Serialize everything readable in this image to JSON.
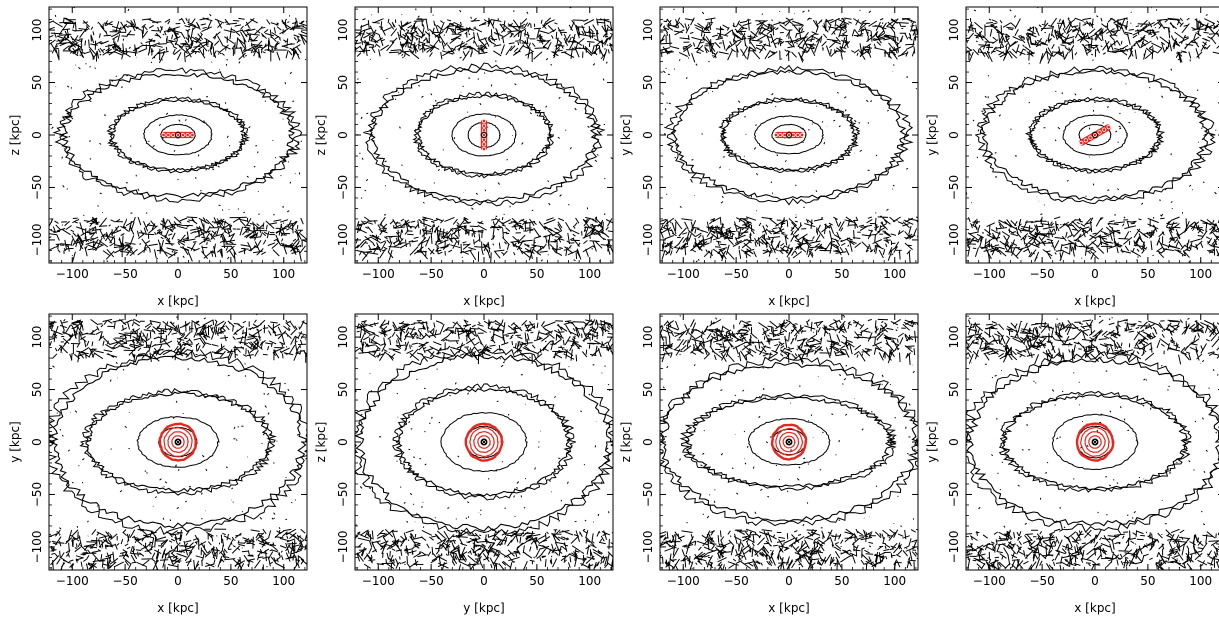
{
  "figure": {
    "colors": {
      "contour": "#000000",
      "overlay": "#e8261e",
      "background": "#ffffff"
    },
    "tick_labels_x": [
      "−100",
      "−50",
      "0",
      "50",
      "100"
    ],
    "tick_labels_y": [
      "−100",
      "−50",
      "0",
      "50",
      "100"
    ]
  },
  "chart_data": [
    {
      "type": "heatmap",
      "panel": "top-1",
      "xlabel": "x [kpc]",
      "ylabel": "z [kpc]",
      "xlim": [
        -122,
        122
      ],
      "ylim": [
        -122,
        122
      ],
      "xticks": [
        -100,
        -50,
        0,
        50,
        100
      ],
      "yticks": [
        -100,
        -50,
        0,
        50,
        100
      ],
      "contour_ellipses": [
        {
          "a": 16,
          "b": 10
        },
        {
          "a": 32,
          "b": 19
        },
        {
          "a": 62,
          "b": 33
        },
        {
          "a": 108,
          "b": 58
        }
      ],
      "outer_bands_y": [
        -95,
        95
      ],
      "red_overlay": {
        "shape": "bar",
        "orientation": "horizontal",
        "length": 31,
        "width": 3
      }
    },
    {
      "type": "heatmap",
      "panel": "top-2",
      "xlabel": "x [kpc]",
      "ylabel": "z [kpc]",
      "xlim": [
        -122,
        122
      ],
      "ylim": [
        -122,
        122
      ],
      "xticks": [
        -100,
        -50,
        0,
        50,
        100
      ],
      "yticks": [
        -100,
        -50,
        0,
        50,
        100
      ],
      "contour_ellipses": [
        {
          "a": 15,
          "b": 12
        },
        {
          "a": 30,
          "b": 20
        },
        {
          "a": 62,
          "b": 37
        },
        {
          "a": 105,
          "b": 62
        }
      ],
      "outer_bands_y": [
        -95,
        95
      ],
      "red_overlay": {
        "shape": "bar",
        "orientation": "vertical",
        "length": 30,
        "width": 3
      }
    },
    {
      "type": "heatmap",
      "panel": "top-3",
      "xlabel": "x [kpc]",
      "ylabel": "y [kpc]",
      "xlim": [
        -122,
        122
      ],
      "ylim": [
        -122,
        122
      ],
      "xticks": [
        -100,
        -50,
        0,
        50,
        100
      ],
      "yticks": [
        -100,
        -50,
        0,
        50,
        100
      ],
      "contour_ellipses": [
        {
          "a": 16,
          "b": 10
        },
        {
          "a": 32,
          "b": 18
        },
        {
          "a": 62,
          "b": 33
        },
        {
          "a": 108,
          "b": 60
        }
      ],
      "outer_bands_y": [
        -95,
        95
      ],
      "red_overlay": {
        "shape": "bar",
        "orientation": "horizontal",
        "length": 28,
        "width": 3
      }
    },
    {
      "type": "heatmap",
      "panel": "top-4",
      "xlabel": "x [kpc]",
      "ylabel": "y [kpc]",
      "xlim": [
        -122,
        122
      ],
      "ylim": [
        -122,
        122
      ],
      "xticks": [
        -100,
        -50,
        0,
        50,
        100
      ],
      "yticks": [
        -100,
        -50,
        0,
        50,
        100
      ],
      "contour_ellipses": [
        {
          "a": 15,
          "b": 10
        },
        {
          "a": 30,
          "b": 19
        },
        {
          "a": 60,
          "b": 33
        },
        {
          "a": 105,
          "b": 60
        }
      ],
      "outer_bands_y": [
        -95,
        95
      ],
      "red_overlay": {
        "shape": "bar",
        "orientation": "tilted",
        "length": 34,
        "width": 3,
        "angle_deg": 30
      }
    },
    {
      "type": "heatmap",
      "panel": "bottom-1",
      "xlabel": "x [kpc]",
      "ylabel": "y [kpc]",
      "xlim": [
        -122,
        122
      ],
      "ylim": [
        -122,
        122
      ],
      "xticks": [
        -100,
        -50,
        0,
        50,
        100
      ],
      "yticks": [
        -100,
        -50,
        0,
        50,
        100
      ],
      "contour_ellipses": [
        {
          "a": 18,
          "b": 14
        },
        {
          "a": 38,
          "b": 24
        },
        {
          "a": 85,
          "b": 46
        },
        {
          "a": 118,
          "b": 80
        }
      ],
      "outer_bands_y": [
        -100,
        100
      ],
      "red_overlay": {
        "shape": "rings",
        "radius": 17,
        "count": 4
      }
    },
    {
      "type": "heatmap",
      "panel": "bottom-2",
      "xlabel": "y [kpc]",
      "ylabel": "z [kpc]",
      "xlim": [
        -122,
        122
      ],
      "ylim": [
        -122,
        122
      ],
      "xticks": [
        -100,
        -50,
        0,
        50,
        100
      ],
      "yticks": [
        -100,
        -50,
        0,
        50,
        100
      ],
      "contour_ellipses": [
        {
          "a": 17,
          "b": 15
        },
        {
          "a": 40,
          "b": 28
        },
        {
          "a": 80,
          "b": 50
        },
        {
          "a": 118,
          "b": 82
        }
      ],
      "outer_bands_y": [
        -100,
        100
      ],
      "red_overlay": {
        "shape": "rings",
        "radius": 17,
        "count": 4
      }
    },
    {
      "type": "heatmap",
      "panel": "bottom-3",
      "xlabel": "x [kpc]",
      "ylabel": "z [kpc]",
      "xlim": [
        -122,
        122
      ],
      "ylim": [
        -122,
        122
      ],
      "xticks": [
        -100,
        -50,
        0,
        50,
        100
      ],
      "yticks": [
        -100,
        -50,
        0,
        50,
        100
      ],
      "contour_ellipses": [
        {
          "a": 16,
          "b": 12
        },
        {
          "a": 38,
          "b": 22
        },
        {
          "a": 95,
          "b": 42
        },
        {
          "a": 120,
          "b": 74
        }
      ],
      "outer_bands_y": [
        -100,
        100
      ],
      "red_overlay": {
        "shape": "rings",
        "radius": 16,
        "count": 4
      }
    },
    {
      "type": "heatmap",
      "panel": "bottom-4",
      "xlabel": "x [kpc]",
      "ylabel": "y [kpc]",
      "xlim": [
        -122,
        122
      ],
      "ylim": [
        -122,
        122
      ],
      "xticks": [
        -100,
        -50,
        0,
        50,
        100
      ],
      "yticks": [
        -100,
        -50,
        0,
        50,
        100
      ],
      "contour_ellipses": [
        {
          "a": 17,
          "b": 15
        },
        {
          "a": 40,
          "b": 26
        },
        {
          "a": 85,
          "b": 44
        },
        {
          "a": 118,
          "b": 78
        }
      ],
      "outer_bands_y": [
        -100,
        100
      ],
      "red_overlay": {
        "shape": "rings",
        "radius": 17,
        "count": 4
      }
    }
  ]
}
